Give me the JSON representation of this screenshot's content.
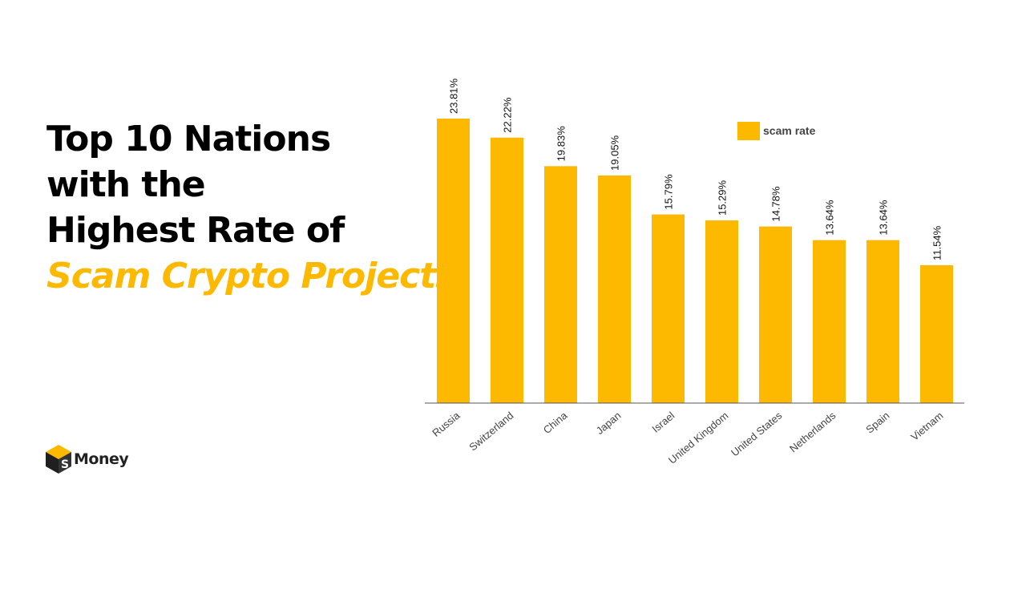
{
  "headline": {
    "line1": "Top 10 Nations",
    "line2": "with the",
    "line3": "Highest Rate of",
    "accent": "Scam Crypto Projects"
  },
  "logo": {
    "text": "Money",
    "icon": "cube-s-logo-icon"
  },
  "colors": {
    "accent": "#FCB900",
    "text": "#000000",
    "axis": "#555555"
  },
  "chart_data": {
    "type": "bar",
    "categories": [
      "Russia",
      "Switzerland",
      "China",
      "Japan",
      "Israel",
      "United Kingdom",
      "United States",
      "Netherlands",
      "Spain",
      "Vietnam"
    ],
    "series": [
      {
        "name": "scam rate",
        "values": [
          23.81,
          22.22,
          19.83,
          19.05,
          15.79,
          15.29,
          14.78,
          13.64,
          13.64,
          11.54
        ]
      }
    ],
    "value_labels": [
      "23.81%",
      "22.22%",
      "19.83%",
      "19.05%",
      "15.79%",
      "15.29%",
      "14.78%",
      "13.64%",
      "13.64%",
      "11.54%"
    ],
    "ylim": [
      0,
      23.81
    ],
    "grid": false,
    "legend_position": "top-right"
  }
}
